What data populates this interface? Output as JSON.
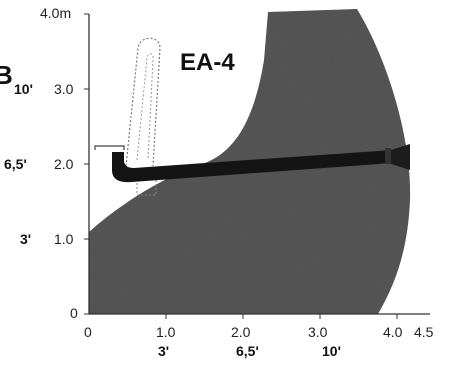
{
  "figure": {
    "title": "EA-4",
    "side_letter": "B",
    "units": {
      "meters_label": "4.0m"
    },
    "x_ticks_m": [
      "0",
      "1.0",
      "2.0",
      "3.0",
      "4.0",
      "4.5"
    ],
    "x_ticks_ft": [
      "3'",
      "6,5'",
      "10'"
    ],
    "y_ticks_m": [
      "0",
      "1.0",
      "2.0",
      "3.0"
    ],
    "y_ticks_ft": [
      "3'",
      "6,5'",
      "10'"
    ]
  },
  "colors": {
    "fill_dark": "#555555",
    "bar_black": "#141414",
    "axis": "#333333"
  }
}
